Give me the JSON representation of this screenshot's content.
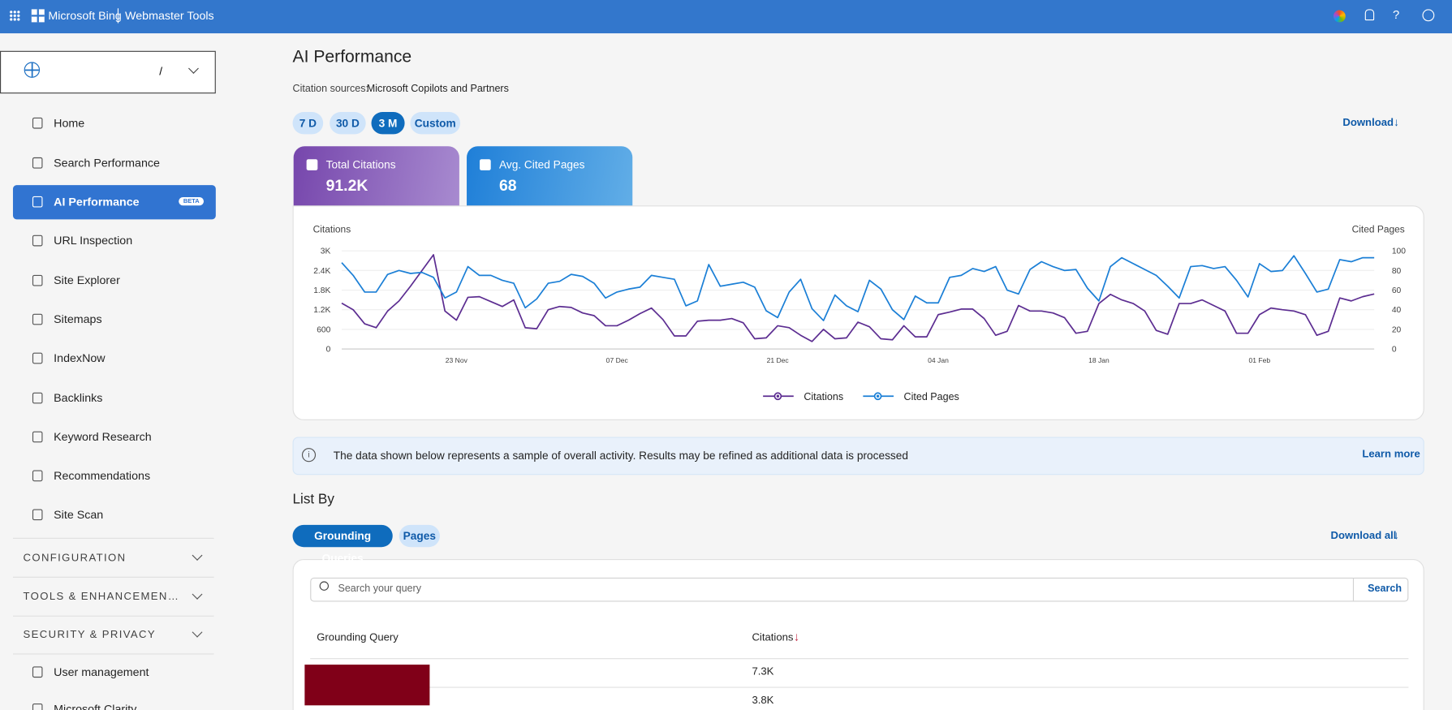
{
  "header": {
    "brand": "Microsoft Bing",
    "product": "Webmaster Tools"
  },
  "sidebar": {
    "site": "/",
    "nav": [
      "Home",
      "Search Performance",
      "AI Performance",
      "URL Inspection",
      "Site Explorer",
      "Sitemaps",
      "IndexNow",
      "Backlinks",
      "Keyword Research",
      "Recommendations",
      "Site Scan"
    ],
    "beta": "BETA",
    "sections": [
      "CONFIGURATION",
      "TOOLS & ENHANCEMEN…",
      "SECURITY & PRIVACY"
    ],
    "bottom": [
      "User management",
      "Microsoft Clarity"
    ]
  },
  "main": {
    "title": "AI Performance",
    "citation_label": "Citation sources:",
    "citation_sources": "Microsoft Copilots and Partners",
    "ranges": [
      "7 D",
      "30 D",
      "3 M",
      "Custom"
    ],
    "download": "Download",
    "cards": [
      {
        "label": "Total Citations",
        "value": "91.2K"
      },
      {
        "label": "Avg. Cited Pages",
        "value": "68"
      }
    ],
    "notice": "The data shown below represents a sample of overall activity. Results may be refined as additional data is processed",
    "learn_more": "Learn more",
    "list_by": "List By",
    "tabs": [
      "Grounding Queries",
      "Pages"
    ],
    "download_all": "Download all",
    "search_placeholder": "Search your query",
    "search_button": "Search",
    "table": {
      "headers": [
        "Grounding Query",
        "Citations"
      ],
      "rows": [
        {
          "citations": "7.3K"
        },
        {
          "citations": "3.8K"
        }
      ]
    }
  },
  "chart_data": {
    "type": "line",
    "y_label": "Citations",
    "y2_label": "Cited Pages",
    "categories": [
      null,
      null,
      null,
      null,
      null,
      null,
      null,
      null,
      null,
      null,
      "23 Nov",
      null,
      null,
      null,
      null,
      null,
      null,
      null,
      null,
      null,
      null,
      null,
      null,
      null,
      "07 Dec",
      null,
      null,
      null,
      null,
      null,
      null,
      null,
      null,
      null,
      null,
      null,
      null,
      null,
      "21 Dec",
      null,
      null,
      null,
      null,
      null,
      null,
      null,
      null,
      null,
      null,
      null,
      null,
      null,
      "04 Jan",
      null,
      null,
      null,
      null,
      null,
      null,
      null,
      null,
      null,
      null,
      null,
      null,
      null,
      "18 Jan",
      null,
      null,
      null,
      null,
      null,
      null,
      null,
      null,
      null,
      null,
      null,
      null,
      null,
      "01 Feb",
      null,
      null,
      null,
      null,
      null,
      null,
      null,
      null,
      null,
      null
    ],
    "series": [
      {
        "name": "Citations",
        "color": "#5c2d91",
        "values": [
          1400,
          1200,
          770,
          650,
          1160,
          1470,
          1920,
          2400,
          2880,
          1160,
          880,
          1580,
          1600,
          1450,
          1300,
          1500,
          650,
          620,
          1200,
          1300,
          1270,
          1100,
          1020,
          710,
          710,
          880,
          1080,
          1250,
          900,
          400,
          400,
          850,
          880,
          880,
          930,
          800,
          310,
          340,
          710,
          650,
          420,
          230,
          600,
          310,
          340,
          820,
          680,
          310,
          280,
          710,
          370,
          370,
          1050,
          1130,
          1220,
          1220,
          930,
          420,
          540,
          1330,
          1160,
          1160,
          1100,
          960,
          480,
          540,
          1390,
          1670,
          1500,
          1390,
          1160,
          570,
          450,
          1390,
          1390,
          1500,
          1330,
          1160,
          480,
          480,
          1050,
          1250,
          1200,
          1160,
          1050,
          420,
          540,
          1560,
          1470,
          1600,
          1680
        ]
      },
      {
        "name": "Cited Pages",
        "color": "#1b7fd6",
        "axis": "y2",
        "values": [
          88,
          75,
          58,
          58,
          76,
          80,
          77,
          78,
          73,
          52,
          58,
          84,
          75,
          75,
          70,
          67,
          42,
          51,
          67,
          69,
          76,
          74,
          67,
          52,
          58,
          61,
          63,
          75,
          73,
          71,
          44,
          49,
          86,
          64,
          66,
          68,
          63,
          39,
          32,
          58,
          71,
          41,
          29,
          55,
          44,
          38,
          70,
          61,
          40,
          30,
          54,
          47,
          47,
          73,
          75,
          82,
          79,
          84,
          60,
          56,
          81,
          89,
          84,
          80,
          81,
          62,
          49,
          84,
          93,
          87,
          81,
          75,
          64,
          52,
          84,
          85,
          82,
          84,
          70,
          53,
          87,
          79,
          80,
          95,
          77,
          58,
          61,
          91,
          89,
          93,
          93
        ]
      }
    ],
    "ylim": [
      0,
      3000
    ],
    "yticks": [
      0,
      600,
      {
        "value": 1200,
        "label": "1.2K"
      },
      {
        "value": 1800,
        "label": "1.8K"
      },
      {
        "value": 2400,
        "label": "2.4K"
      },
      {
        "value": 3000,
        "label": "3K"
      }
    ],
    "y2lim": [
      0,
      100
    ],
    "y2ticks": [
      0,
      20,
      40,
      60,
      80,
      100
    ],
    "grid": true
  }
}
